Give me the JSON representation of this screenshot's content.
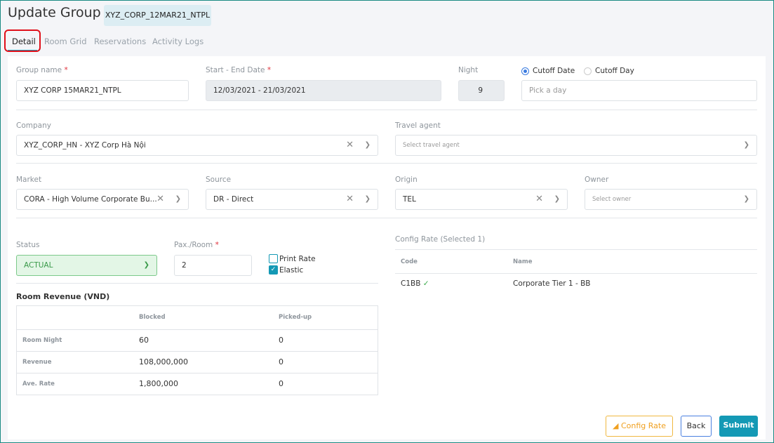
{
  "header": {
    "title": "Update Group",
    "group_code": "XYZ_CORP_12MAR21_NTPL"
  },
  "tabs": [
    {
      "label": "Detail",
      "active": true
    },
    {
      "label": "Room Grid"
    },
    {
      "label": "Reservations"
    },
    {
      "label": "Activity Logs"
    }
  ],
  "form": {
    "group_name": {
      "label": "Group name",
      "required": "*",
      "value": "XYZ CORP 15MAR21_NTPL"
    },
    "dates": {
      "label": "Start - End Date",
      "required": "*",
      "value": "12/03/2021 - 21/03/2021"
    },
    "night": {
      "label": "Night",
      "value": "9"
    },
    "cutoff": {
      "options": [
        "Cutoff Date",
        "Cutoff Day"
      ],
      "selected": "Cutoff Date",
      "placeholder": "Pick a day"
    },
    "company": {
      "label": "Company",
      "value": "XYZ_CORP_HN - XYZ Corp Hà Nội"
    },
    "travel_agent": {
      "label": "Travel agent",
      "placeholder": "Select travel agent"
    },
    "market": {
      "label": "Market",
      "value": "CORA - High Volume Corporate Bu..."
    },
    "source": {
      "label": "Source",
      "value": "DR - Direct"
    },
    "origin": {
      "label": "Origin",
      "value": "TEL"
    },
    "owner": {
      "label": "Owner",
      "placeholder": "Select owner"
    },
    "status": {
      "label": "Status",
      "value": "ACTUAL"
    },
    "pax": {
      "label": "Pax./Room",
      "required": "*",
      "value": "2"
    },
    "print_rate": {
      "label": "Print Rate",
      "checked": false
    },
    "elastic": {
      "label": "Elastic",
      "checked": true
    }
  },
  "revenue": {
    "title": "Room Revenue (VND)",
    "columns": [
      "",
      "Blocked",
      "Picked-up"
    ],
    "rows": [
      [
        "Room Night",
        "60",
        "0"
      ],
      [
        "Revenue",
        "108,000,000",
        "0"
      ],
      [
        "Ave. Rate",
        "1,800,000",
        "0"
      ]
    ]
  },
  "config_rate": {
    "title": "Config Rate (Selected 1)",
    "columns": [
      "Code",
      "Name"
    ],
    "rows": [
      {
        "code": "C1BB",
        "name": "Corporate Tier 1 - BB",
        "selected": true
      }
    ]
  },
  "buttons": {
    "config_rate": "Config Rate",
    "back": "Back",
    "submit": "Submit"
  },
  "colors": {
    "accent": "#1499b5",
    "status_green": "#e3f6e6",
    "config_orange": "#f0a020"
  }
}
